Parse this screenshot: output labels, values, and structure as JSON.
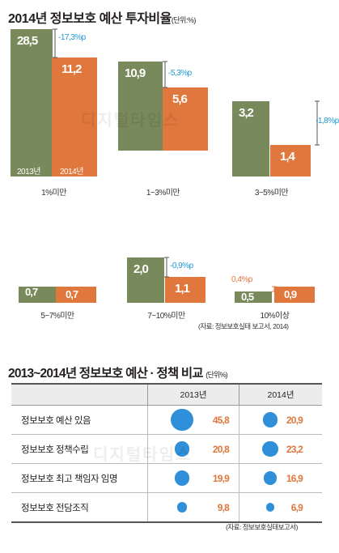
{
  "chart_data": [
    {
      "type": "bar",
      "title": "2014년 정보보호 예산 투자비율",
      "unit": "(단위:%)",
      "categories": [
        "1%미만",
        "1~3%미만",
        "3~5%미만",
        "5~7%미만",
        "7~10%미만",
        "10%이상"
      ],
      "series": [
        {
          "name": "2013년",
          "color": "#78895c",
          "values": [
            28.5,
            10.9,
            3.2,
            0.7,
            2.0,
            0.5
          ]
        },
        {
          "name": "2014년",
          "color": "#e0773d",
          "values": [
            11.2,
            5.6,
            1.4,
            0.7,
            1.1,
            0.9
          ]
        }
      ],
      "value_labels": {
        "2013": [
          "28,5",
          "10,9",
          "3,2",
          "0,7",
          "2,0",
          "0,5"
        ],
        "2014": [
          "11,2",
          "5,6",
          "1,4",
          "0,7",
          "1,1",
          "0,9"
        ]
      },
      "diffs": [
        "-17,3%p",
        "-5,3%p",
        "-1,8%p",
        "",
        "-0,9%p",
        "0,4%p"
      ],
      "year_labels": [
        "2013년",
        "2014년"
      ],
      "source": "(자료: 정보보호실태  보고서, 2014)"
    },
    {
      "type": "table",
      "title": "2013~2014년 정보보호 예산 · 정책 비교",
      "unit": "(단위%)",
      "columns": [
        "",
        "2013년",
        "2014년"
      ],
      "rows": [
        {
          "label": "정보보호 예산 있음",
          "v2013": 45.8,
          "v2014": 20.9,
          "t2013": "45,8",
          "t2014": "20,9"
        },
        {
          "label": "정보보호 정책수립",
          "v2013": 20.8,
          "v2014": 23.2,
          "t2013": "20,8",
          "t2014": "23,2"
        },
        {
          "label": "정보보호 최고 책임자 임명",
          "v2013": 19.9,
          "v2014": 16.9,
          "t2013": "19,9",
          "t2014": "16,9"
        },
        {
          "label": "정보보호 전담조직",
          "v2013": 9.8,
          "v2014": 6.9,
          "t2013": "9,8",
          "t2014": "6,9"
        }
      ],
      "dot_color": "#2f8fd8",
      "source": "(자료: 정보보호실태보고서)"
    }
  ],
  "watermarks": [
    "디지털타임스",
    "디지털타임스"
  ]
}
